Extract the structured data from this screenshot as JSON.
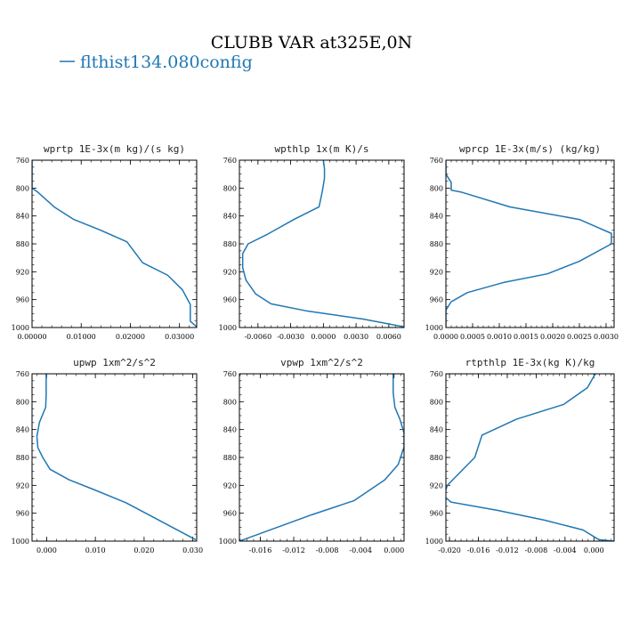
{
  "figure": {
    "title": "CLUBB VAR at325E,0N",
    "legend_label": "flthist134.080config",
    "series_color": "#1f77b4"
  },
  "chart_data": [
    {
      "type": "line",
      "title": "wprtp   1E-3x(m kg)/(s kg)",
      "xlim": [
        0.0,
        0.0335
      ],
      "ylim": [
        760,
        1000
      ],
      "y_inverted": true,
      "xticks": [
        0.0,
        0.01,
        0.02,
        0.03
      ],
      "xtick_labels": [
        "0.00000",
        "0.01000",
        "0.02000",
        "0.03000"
      ],
      "yticks": [
        760,
        800,
        840,
        880,
        920,
        960,
        1000
      ],
      "ytick_labels": [
        "760",
        "800",
        "840",
        "880",
        "920",
        "960",
        "1000"
      ],
      "series": [
        {
          "x": [
            0.0,
            0.0,
            0.0012,
            0.0045,
            0.0085,
            0.0138,
            0.0193,
            0.0225,
            0.0276,
            0.0306,
            0.0322,
            0.0322,
            0.0335
          ],
          "y": [
            760,
            800,
            806,
            827,
            845,
            860,
            877,
            907,
            925,
            946,
            967,
            991,
            999
          ]
        }
      ]
    },
    {
      "type": "line",
      "title": "wpthlp   1x(m K)/s",
      "xlim": [
        -0.0077,
        0.0074
      ],
      "ylim": [
        760,
        1000
      ],
      "y_inverted": true,
      "xticks": [
        -0.006,
        -0.003,
        0.0,
        0.003,
        0.006
      ],
      "xtick_labels": [
        "-0.0060",
        "-0.0030",
        "0.0000",
        "0.0030",
        "0.0060"
      ],
      "yticks": [
        760,
        800,
        840,
        880,
        920,
        960,
        1000
      ],
      "ytick_labels": [
        "760",
        "800",
        "840",
        "880",
        "920",
        "960",
        "1000"
      ],
      "series": [
        {
          "x": [
            0.0,
            0.0001,
            0.0001,
            -0.0001,
            -0.0004,
            -0.0027,
            -0.0051,
            -0.0069,
            -0.0074,
            -0.0074,
            -0.0071,
            -0.0062,
            -0.0048,
            -0.0016,
            0.0037,
            0.0074
          ],
          "y": [
            760,
            772,
            786,
            805,
            827,
            845,
            866,
            880,
            894,
            914,
            932,
            952,
            966,
            976,
            988,
            999
          ]
        }
      ]
    },
    {
      "type": "line",
      "title": "wprcp   1E-3x(m/s) (kg/kg)",
      "xlim": [
        0.0,
        0.00315
      ],
      "ylim": [
        760,
        1000
      ],
      "y_inverted": true,
      "xticks": [
        0.0,
        0.0005,
        0.001,
        0.0015,
        0.002,
        0.0025,
        0.003
      ],
      "xtick_labels": [
        "0.0000",
        "0.0005",
        "0.0010",
        "0.0015",
        "0.0020",
        "0.0025",
        "0.0030"
      ],
      "yticks": [
        760,
        800,
        840,
        880,
        920,
        960,
        1000
      ],
      "ytick_labels": [
        "760",
        "800",
        "840",
        "880",
        "920",
        "960",
        "1000"
      ],
      "series": [
        {
          "x": [
            0.0,
            0.0,
            0.0001,
            0.0001,
            0.0003,
            0.0012,
            0.0025,
            0.0031,
            0.0031,
            0.0025,
            0.0019,
            0.0011,
            0.0004,
            0.0001,
            0.0,
            0.0
          ],
          "y": [
            760,
            780,
            792,
            803,
            806,
            827,
            845,
            865,
            880,
            905,
            923,
            935,
            950,
            963,
            975,
            999
          ]
        }
      ]
    },
    {
      "type": "line",
      "title": "upwp   1xm^2/s^2",
      "xlim": [
        -0.003,
        0.0308
      ],
      "ylim": [
        760,
        1000
      ],
      "y_inverted": true,
      "xticks": [
        0.0,
        0.01,
        0.02,
        0.03
      ],
      "xtick_labels": [
        "0.000",
        "0.010",
        "0.020",
        "0.030"
      ],
      "yticks": [
        760,
        800,
        840,
        880,
        920,
        960,
        1000
      ],
      "ytick_labels": [
        "760",
        "800",
        "840",
        "880",
        "920",
        "960",
        "1000"
      ],
      "series": [
        {
          "x": [
            -0.0001,
            -0.0001,
            -0.0002,
            -0.0015,
            -0.002,
            -0.0018,
            -0.0008,
            0.0007,
            0.0046,
            0.0093,
            0.0163,
            0.0217,
            0.0306
          ],
          "y": [
            760,
            790,
            808,
            830,
            850,
            866,
            880,
            897,
            912,
            925,
            945,
            965,
            998
          ]
        }
      ]
    },
    {
      "type": "line",
      "title": "vpwp   1xm^2/s^2",
      "xlim": [
        -0.0185,
        0.0012
      ],
      "ylim": [
        760,
        1000
      ],
      "y_inverted": true,
      "xticks": [
        -0.016,
        -0.012,
        -0.008,
        -0.004,
        0.0
      ],
      "xtick_labels": [
        "-0.016",
        "-0.012",
        "-0.008",
        "-0.004",
        "0.000"
      ],
      "yticks": [
        760,
        800,
        840,
        880,
        920,
        960,
        1000
      ],
      "ytick_labels": [
        "760",
        "800",
        "840",
        "880",
        "920",
        "960",
        "1000"
      ],
      "series": [
        {
          "x": [
            -0.0001,
            -0.0001,
            0.0001,
            0.0007,
            0.0012,
            0.0012,
            0.0005,
            -0.0011,
            -0.0048,
            -0.0098,
            -0.0185
          ],
          "y": [
            760,
            787,
            808,
            825,
            845,
            865,
            890,
            912,
            942,
            962,
            1000
          ]
        }
      ]
    },
    {
      "type": "line",
      "title": "rtpthlp   1E-3x(kg K)/kg",
      "xlim": [
        -0.0205,
        0.0028
      ],
      "ylim": [
        760,
        1000
      ],
      "y_inverted": true,
      "xticks": [
        -0.02,
        -0.016,
        -0.012,
        -0.008,
        -0.004,
        0.0
      ],
      "xtick_labels": [
        "-0.020",
        "-0.016",
        "-0.012",
        "-0.008",
        "-0.004",
        "0.000"
      ],
      "yticks": [
        760,
        800,
        840,
        880,
        920,
        960,
        1000
      ],
      "ytick_labels": [
        "760",
        "800",
        "840",
        "880",
        "920",
        "960",
        "1000"
      ],
      "series": [
        {
          "x": [
            0.0002,
            -0.0009,
            -0.0042,
            -0.0107,
            -0.0155,
            -0.0165,
            -0.0203,
            -0.0208,
            -0.0198,
            -0.0133,
            -0.0068,
            -0.0015,
            0.0007,
            0.0028
          ],
          "y": [
            760,
            780,
            804,
            825,
            848,
            880,
            920,
            935,
            944,
            956,
            970,
            984,
            998,
            1000
          ]
        }
      ]
    }
  ]
}
